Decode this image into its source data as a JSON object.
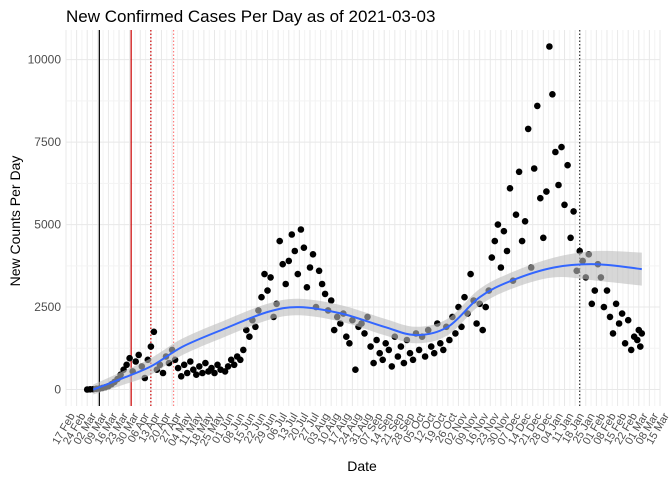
{
  "chart_data": {
    "type": "scatter",
    "title": "New Confirmed Cases Per Day as of 2021-03-03",
    "xlabel": "Date",
    "ylabel": "New Counts Per Day",
    "xlim": [
      "2020-02-17",
      "2021-03-15"
    ],
    "ylim": [
      -500,
      10900
    ],
    "x_tick_labels": [
      "17 Feb",
      "24 Feb",
      "02 Mar",
      "09 Mar",
      "16 Mar",
      "23 Mar",
      "30 Mar",
      "06 Apr",
      "13 Apr",
      "20 Apr",
      "27 Apr",
      "04 May",
      "11 May",
      "18 May",
      "25 May",
      "01 Jun",
      "08 Jun",
      "15 Jun",
      "22 Jun",
      "29 Jun",
      "06 Jul",
      "13 Jul",
      "20 Jul",
      "27 Jul",
      "03 Aug",
      "10 Aug",
      "17 Aug",
      "24 Aug",
      "31 Aug",
      "07 Sep",
      "14 Sep",
      "21 Sep",
      "28 Sep",
      "05 Oct",
      "12 Oct",
      "19 Oct",
      "26 Oct",
      "02 Nov",
      "09 Nov",
      "16 Nov",
      "23 Nov",
      "30 Nov",
      "07 Dec",
      "14 Dec",
      "21 Dec",
      "28 Dec",
      "04 Jan",
      "11 Jan",
      "18 Jan",
      "25 Jan",
      "01 Feb",
      "08 Feb",
      "15 Feb",
      "22 Feb",
      "01 Mar",
      "08 Mar",
      "15 Mar"
    ],
    "y_ticks": [
      0,
      2500,
      5000,
      7500,
      10000
    ],
    "y_tick_labels": [
      "0",
      "2500",
      "5000",
      "7500",
      "10000"
    ],
    "grid": true,
    "reference_lines": [
      {
        "date": "2020-03-10",
        "color": "#000000",
        "style": "solid"
      },
      {
        "date": "2020-03-31",
        "color": "#cc0000",
        "style": "solid"
      },
      {
        "date": "2020-04-13",
        "color": "#cc0000",
        "style": "dotted"
      },
      {
        "date": "2020-04-28",
        "color": "#ff8080",
        "style": "dotted"
      },
      {
        "date": "2021-01-21",
        "color": "#333333",
        "style": "dotted"
      }
    ],
    "smooth": {
      "color": "#3366ff",
      "band_color": "#bdbdbd",
      "points": [
        {
          "x": "2020-03-06",
          "y": 0,
          "lo": -150,
          "hi": 150
        },
        {
          "x": "2020-03-23",
          "y": 300,
          "lo": 100,
          "hi": 500
        },
        {
          "x": "2020-04-13",
          "y": 700,
          "lo": 450,
          "hi": 950
        },
        {
          "x": "2020-05-04",
          "y": 1300,
          "lo": 1050,
          "hi": 1550
        },
        {
          "x": "2020-06-01",
          "y": 1850,
          "lo": 1600,
          "hi": 2100
        },
        {
          "x": "2020-06-29",
          "y": 2350,
          "lo": 2100,
          "hi": 2600
        },
        {
          "x": "2020-07-20",
          "y": 2500,
          "lo": 2250,
          "hi": 2750
        },
        {
          "x": "2020-08-17",
          "y": 2300,
          "lo": 2050,
          "hi": 2550
        },
        {
          "x": "2020-09-14",
          "y": 1900,
          "lo": 1650,
          "hi": 2150
        },
        {
          "x": "2020-10-05",
          "y": 1650,
          "lo": 1400,
          "hi": 1900
        },
        {
          "x": "2020-10-26",
          "y": 1900,
          "lo": 1650,
          "hi": 2150
        },
        {
          "x": "2020-11-16",
          "y": 2800,
          "lo": 2550,
          "hi": 3050
        },
        {
          "x": "2020-12-07",
          "y": 3300,
          "lo": 3050,
          "hi": 3550
        },
        {
          "x": "2021-01-04",
          "y": 3700,
          "lo": 3400,
          "hi": 4000
        },
        {
          "x": "2021-02-01",
          "y": 3800,
          "lo": 3300,
          "hi": 4200
        },
        {
          "x": "2021-03-03",
          "y": 3650,
          "lo": 3150,
          "hi": 4150
        }
      ]
    },
    "series": [
      {
        "color": "#000000",
        "points": [
          [
            "2020-03-02",
            0
          ],
          [
            "2020-03-04",
            5
          ],
          [
            "2020-03-06",
            10
          ],
          [
            "2020-03-08",
            20
          ],
          [
            "2020-03-10",
            30
          ],
          [
            "2020-03-12",
            50
          ],
          [
            "2020-03-14",
            70
          ],
          [
            "2020-03-16",
            100
          ],
          [
            "2020-03-18",
            160
          ],
          [
            "2020-03-20",
            230
          ],
          [
            "2020-03-22",
            320
          ],
          [
            "2020-03-24",
            450
          ],
          [
            "2020-03-26",
            600
          ],
          [
            "2020-03-28",
            750
          ],
          [
            "2020-03-30",
            950
          ],
          [
            "2020-04-01",
            550
          ],
          [
            "2020-04-03",
            850
          ],
          [
            "2020-04-05",
            1050
          ],
          [
            "2020-04-07",
            700
          ],
          [
            "2020-04-09",
            350
          ],
          [
            "2020-04-11",
            900
          ],
          [
            "2020-04-13",
            1300
          ],
          [
            "2020-04-15",
            1750
          ],
          [
            "2020-04-17",
            600
          ],
          [
            "2020-04-19",
            750
          ],
          [
            "2020-04-21",
            500
          ],
          [
            "2020-04-23",
            1000
          ],
          [
            "2020-04-25",
            800
          ],
          [
            "2020-04-27",
            1200
          ],
          [
            "2020-04-29",
            900
          ],
          [
            "2020-05-01",
            650
          ],
          [
            "2020-05-03",
            400
          ],
          [
            "2020-05-05",
            750
          ],
          [
            "2020-05-07",
            500
          ],
          [
            "2020-05-09",
            850
          ],
          [
            "2020-05-11",
            600
          ],
          [
            "2020-05-13",
            450
          ],
          [
            "2020-05-15",
            700
          ],
          [
            "2020-05-17",
            500
          ],
          [
            "2020-05-19",
            800
          ],
          [
            "2020-05-21",
            550
          ],
          [
            "2020-05-23",
            650
          ],
          [
            "2020-05-25",
            500
          ],
          [
            "2020-05-27",
            750
          ],
          [
            "2020-05-29",
            600
          ],
          [
            "2020-06-01",
            550
          ],
          [
            "2020-06-03",
            700
          ],
          [
            "2020-06-05",
            900
          ],
          [
            "2020-06-07",
            750
          ],
          [
            "2020-06-09",
            1000
          ],
          [
            "2020-06-11",
            900
          ],
          [
            "2020-06-13",
            1200
          ],
          [
            "2020-06-15",
            1800
          ],
          [
            "2020-06-17",
            1600
          ],
          [
            "2020-06-19",
            2100
          ],
          [
            "2020-06-21",
            1900
          ],
          [
            "2020-06-23",
            2400
          ],
          [
            "2020-06-25",
            2800
          ],
          [
            "2020-06-27",
            3500
          ],
          [
            "2020-06-29",
            3000
          ],
          [
            "2020-07-01",
            3400
          ],
          [
            "2020-07-03",
            2200
          ],
          [
            "2020-07-05",
            2600
          ],
          [
            "2020-07-07",
            4500
          ],
          [
            "2020-07-09",
            3800
          ],
          [
            "2020-07-11",
            3200
          ],
          [
            "2020-07-13",
            3900
          ],
          [
            "2020-07-15",
            4700
          ],
          [
            "2020-07-17",
            4200
          ],
          [
            "2020-07-19",
            3500
          ],
          [
            "2020-07-21",
            4850
          ],
          [
            "2020-07-23",
            4300
          ],
          [
            "2020-07-25",
            3100
          ],
          [
            "2020-07-27",
            3700
          ],
          [
            "2020-07-29",
            4100
          ],
          [
            "2020-07-31",
            2500
          ],
          [
            "2020-08-02",
            3600
          ],
          [
            "2020-08-04",
            3200
          ],
          [
            "2020-08-06",
            2900
          ],
          [
            "2020-08-08",
            2400
          ],
          [
            "2020-08-10",
            2700
          ],
          [
            "2020-08-12",
            1800
          ],
          [
            "2020-08-14",
            2200
          ],
          [
            "2020-08-16",
            2000
          ],
          [
            "2020-08-18",
            2300
          ],
          [
            "2020-08-20",
            1600
          ],
          [
            "2020-08-22",
            1400
          ],
          [
            "2020-08-24",
            2100
          ],
          [
            "2020-08-26",
            600
          ],
          [
            "2020-08-28",
            1900
          ],
          [
            "2020-08-30",
            2000
          ],
          [
            "2020-09-01",
            1700
          ],
          [
            "2020-09-03",
            2200
          ],
          [
            "2020-09-05",
            1300
          ],
          [
            "2020-09-07",
            800
          ],
          [
            "2020-09-09",
            1500
          ],
          [
            "2020-09-11",
            1100
          ],
          [
            "2020-09-13",
            900
          ],
          [
            "2020-09-15",
            1400
          ],
          [
            "2020-09-17",
            1200
          ],
          [
            "2020-09-19",
            700
          ],
          [
            "2020-09-21",
            1600
          ],
          [
            "2020-09-23",
            1000
          ],
          [
            "2020-09-25",
            1300
          ],
          [
            "2020-09-27",
            800
          ],
          [
            "2020-09-29",
            1500
          ],
          [
            "2020-10-01",
            1100
          ],
          [
            "2020-10-03",
            900
          ],
          [
            "2020-10-05",
            1700
          ],
          [
            "2020-10-07",
            1200
          ],
          [
            "2020-10-09",
            1600
          ],
          [
            "2020-10-11",
            1000
          ],
          [
            "2020-10-13",
            1800
          ],
          [
            "2020-10-15",
            1300
          ],
          [
            "2020-10-17",
            1100
          ],
          [
            "2020-10-19",
            2000
          ],
          [
            "2020-10-21",
            1400
          ],
          [
            "2020-10-23",
            1200
          ],
          [
            "2020-10-25",
            1900
          ],
          [
            "2020-10-27",
            1500
          ],
          [
            "2020-10-29",
            2200
          ],
          [
            "2020-10-31",
            1700
          ],
          [
            "2020-11-02",
            2500
          ],
          [
            "2020-11-04",
            1900
          ],
          [
            "2020-11-06",
            2800
          ],
          [
            "2020-11-08",
            2300
          ],
          [
            "2020-11-10",
            3500
          ],
          [
            "2020-11-12",
            2700
          ],
          [
            "2020-11-14",
            2000
          ],
          [
            "2020-11-16",
            2600
          ],
          [
            "2020-11-18",
            1800
          ],
          [
            "2020-11-20",
            2500
          ],
          [
            "2020-11-22",
            3000
          ],
          [
            "2020-11-24",
            4000
          ],
          [
            "2020-11-26",
            4500
          ],
          [
            "2020-11-28",
            5000
          ],
          [
            "2020-11-30",
            3700
          ],
          [
            "2020-12-02",
            4800
          ],
          [
            "2020-12-04",
            4200
          ],
          [
            "2020-12-06",
            6100
          ],
          [
            "2020-12-08",
            3300
          ],
          [
            "2020-12-10",
            5300
          ],
          [
            "2020-12-12",
            6600
          ],
          [
            "2020-12-14",
            4500
          ],
          [
            "2020-12-16",
            5100
          ],
          [
            "2020-12-18",
            7900
          ],
          [
            "2020-12-20",
            3700
          ],
          [
            "2020-12-22",
            6700
          ],
          [
            "2020-12-24",
            8600
          ],
          [
            "2020-12-26",
            5800
          ],
          [
            "2020-12-28",
            4600
          ],
          [
            "2020-12-30",
            6000
          ],
          [
            "2021-01-01",
            10400
          ],
          [
            "2021-01-03",
            8950
          ],
          [
            "2021-01-05",
            7200
          ],
          [
            "2021-01-07",
            6200
          ],
          [
            "2021-01-09",
            7350
          ],
          [
            "2021-01-11",
            5600
          ],
          [
            "2021-01-13",
            6800
          ],
          [
            "2021-01-15",
            4600
          ],
          [
            "2021-01-17",
            5400
          ],
          [
            "2021-01-19",
            3600
          ],
          [
            "2021-01-21",
            4200
          ],
          [
            "2021-01-23",
            3900
          ],
          [
            "2021-01-25",
            3400
          ],
          [
            "2021-01-27",
            4100
          ],
          [
            "2021-01-29",
            2600
          ],
          [
            "2021-01-31",
            3000
          ],
          [
            "2021-02-02",
            3800
          ],
          [
            "2021-02-04",
            3400
          ],
          [
            "2021-02-06",
            2500
          ],
          [
            "2021-02-08",
            3000
          ],
          [
            "2021-02-10",
            2200
          ],
          [
            "2021-02-12",
            1700
          ],
          [
            "2021-02-14",
            2600
          ],
          [
            "2021-02-16",
            2000
          ],
          [
            "2021-02-18",
            2300
          ],
          [
            "2021-02-20",
            1400
          ],
          [
            "2021-02-22",
            2100
          ],
          [
            "2021-02-24",
            1200
          ],
          [
            "2021-02-26",
            1600
          ],
          [
            "2021-02-28",
            1500
          ],
          [
            "2021-03-01",
            1800
          ],
          [
            "2021-03-02",
            1300
          ],
          [
            "2021-03-03",
            1700
          ]
        ]
      }
    ]
  }
}
